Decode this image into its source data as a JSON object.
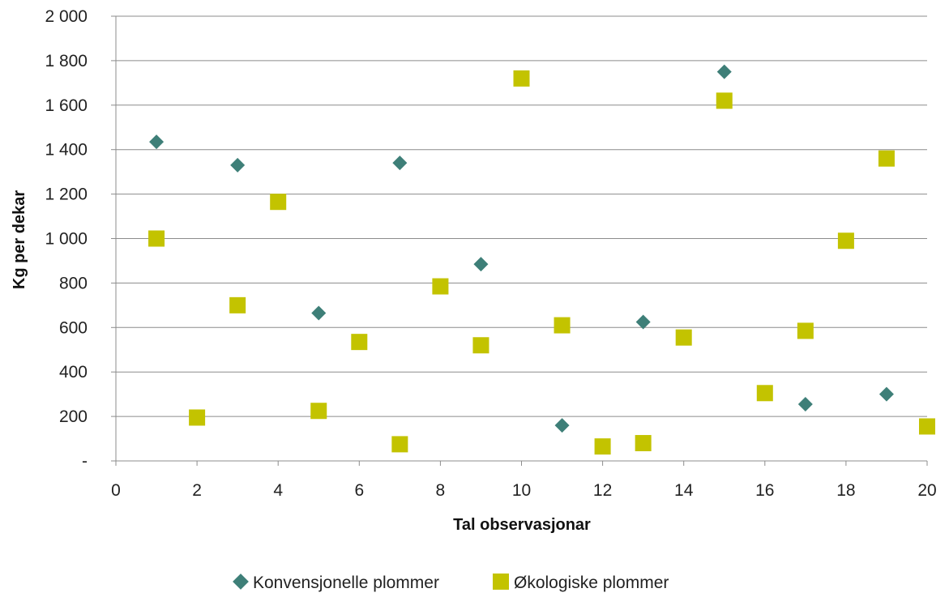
{
  "chart_data": {
    "type": "scatter",
    "title": "",
    "xlabel": "Tal observasjonar",
    "ylabel": "Kg per dekar",
    "xlim": [
      0,
      20
    ],
    "ylim": [
      0,
      2000
    ],
    "x_ticks": [
      0,
      2,
      4,
      6,
      8,
      10,
      12,
      14,
      16,
      18,
      20
    ],
    "x_tick_labels": [
      "0",
      "2",
      "4",
      "6",
      "8",
      "10",
      "12",
      "14",
      "16",
      "18",
      "20"
    ],
    "y_ticks": [
      0,
      200,
      400,
      600,
      800,
      1000,
      1200,
      1400,
      1600,
      1800,
      2000
    ],
    "y_tick_labels": [
      "-",
      "200",
      "400",
      "600",
      "800",
      "1 000",
      "1 200",
      "1 400",
      "1 600",
      "1 800",
      "2 000"
    ],
    "grid": "horizontal",
    "legend_position": "bottom",
    "series": [
      {
        "name": "Konvensjonelle plommer",
        "marker": "diamond",
        "color": "#3E7F78",
        "x": [
          1,
          3,
          5,
          7,
          9,
          11,
          13,
          15,
          17,
          19
        ],
        "y": [
          1435,
          1330,
          665,
          1340,
          885,
          160,
          625,
          1750,
          255,
          300
        ]
      },
      {
        "name": "Økologiske plommer",
        "marker": "square",
        "color": "#C3C300",
        "x": [
          1,
          2,
          3,
          4,
          5,
          6,
          7,
          8,
          9,
          10,
          11,
          12,
          13,
          14,
          15,
          16,
          17,
          18,
          19,
          20
        ],
        "y": [
          1000,
          195,
          700,
          1165,
          225,
          535,
          75,
          785,
          520,
          1720,
          610,
          65,
          80,
          555,
          1620,
          305,
          585,
          990,
          1360,
          155
        ]
      }
    ]
  }
}
